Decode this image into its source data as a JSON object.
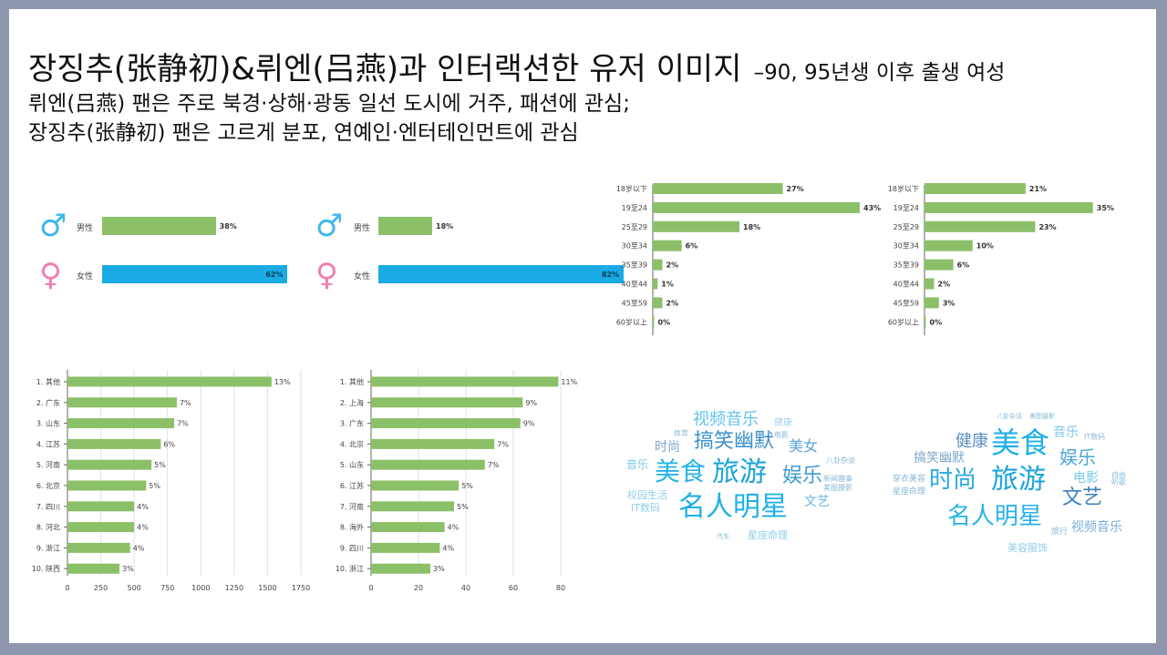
{
  "title": {
    "main": "장징추(张静初)&뤼엔(吕燕)과 인터랙션한 유저 이미지",
    "suffix": "–90, 95년생 이후 출생 여성",
    "line2": "뤼엔(吕燕) 팬은 주로 북경·상해·광동 일선 도시에 거주, 패션에 관심;",
    "line3": "장징추(张静初) 팬은 고르게 분포, 연예인·엔터테인먼트에 관심"
  },
  "colors": {
    "green": "#8cc068",
    "blue": "#1aabe4",
    "male": "#3db7ec",
    "female": "#f07fb3"
  },
  "gender": [
    {
      "male_icon": "♂",
      "female_icon": "♀",
      "male_label": "男性",
      "female_label": "女性",
      "male_text": "38%",
      "female_text": "62%",
      "male": 38,
      "female": 62
    },
    {
      "male_icon": "♂",
      "female_icon": "♀",
      "male_label": "男性",
      "female_label": "女性",
      "male_text": "18%",
      "female_text": "82%",
      "male": 18,
      "female": 82
    }
  ],
  "chart_data": [
    {
      "type": "bar",
      "orientation": "horizontal",
      "title": "",
      "categories": [
        "18岁以下",
        "19至24",
        "25至29",
        "30至34",
        "35至39",
        "40至44",
        "45至59",
        "60岁以上"
      ],
      "values": [
        27,
        43,
        18,
        6,
        2,
        1,
        2,
        0
      ],
      "labels": [
        "27%",
        "43%",
        "18%",
        "6%",
        "2%",
        "1%",
        "2%",
        "0%"
      ],
      "unit": "%"
    },
    {
      "type": "bar",
      "orientation": "horizontal",
      "title": "",
      "categories": [
        "18岁以下",
        "19至24",
        "25至29",
        "30至34",
        "35至39",
        "40至44",
        "45至59",
        "60岁以上"
      ],
      "values": [
        21,
        35,
        23,
        10,
        6,
        2,
        3,
        0
      ],
      "labels": [
        "21%",
        "35%",
        "23%",
        "10%",
        "6%",
        "2%",
        "3%",
        "0%"
      ],
      "unit": "%"
    },
    {
      "type": "bar",
      "orientation": "horizontal",
      "title": "",
      "categories": [
        "1. 其他",
        "2. 广东",
        "3. 山东",
        "4. 江苏",
        "5. 河南",
        "6. 北京",
        "7. 四川",
        "8. 河北",
        "9. 浙江",
        "10. 陕西"
      ],
      "values": [
        1530,
        820,
        800,
        700,
        630,
        590,
        500,
        500,
        470,
        390
      ],
      "labels": [
        "13%",
        "7%",
        "7%",
        "6%",
        "5%",
        "5%",
        "4%",
        "4%",
        "4%",
        "3%"
      ],
      "xlim": [
        0,
        1750
      ],
      "ticks": [
        0,
        250,
        500,
        750,
        1000,
        1250,
        1500,
        1750
      ]
    },
    {
      "type": "bar",
      "orientation": "horizontal",
      "title": "",
      "categories": [
        "1. 其他",
        "2. 上海",
        "3. 广东",
        "4. 北京",
        "5. 山东",
        "6. 江苏",
        "7. 河南",
        "8. 海外",
        "9. 四川",
        "10. 浙江"
      ],
      "values": [
        79,
        64,
        63,
        52,
        48,
        37,
        35,
        31,
        29,
        25
      ],
      "labels": [
        "11%",
        "9%",
        "9%",
        "7%",
        "7%",
        "5%",
        "5%",
        "4%",
        "4%",
        "3%"
      ],
      "xlim": [
        0,
        80
      ],
      "ticks": [
        0,
        20,
        40,
        60,
        80
      ]
    }
  ],
  "clouds": [
    [
      {
        "text": "视频音乐",
        "size": 18,
        "color": "#62c3ee",
        "x": 0,
        "y": 0
      },
      {
        "text": "健康",
        "size": 10,
        "color": "#9fd4ee",
        "x": 0,
        "y": 0
      },
      {
        "text": "体育",
        "size": 8,
        "color": "#8ab8d6",
        "x": 0,
        "y": 0
      },
      {
        "text": "电影",
        "size": 8,
        "color": "#8ab8d6",
        "x": 0,
        "y": 0
      },
      {
        "text": "搞笑幽默",
        "size": 22,
        "color": "#3b8fc9",
        "x": 0,
        "y": 0
      },
      {
        "text": "时尚",
        "size": 14,
        "color": "#7fa7c9",
        "x": 0,
        "y": 0
      },
      {
        "text": "美女",
        "size": 16,
        "color": "#5aa6d6",
        "x": 0,
        "y": 0
      },
      {
        "text": "音乐",
        "size": 12,
        "color": "#7bc8ea",
        "x": 0,
        "y": 0
      },
      {
        "text": "美食",
        "size": 28,
        "color": "#29b3e6",
        "x": 0,
        "y": 0
      },
      {
        "text": "旅游",
        "size": 30,
        "color": "#1aa3db",
        "x": 0,
        "y": 0
      },
      {
        "text": "娱乐",
        "size": 22,
        "color": "#3d9ad2",
        "x": 0,
        "y": 0
      },
      {
        "text": "八卦杂谈",
        "size": 8,
        "color": "#8ab8d6",
        "x": 0,
        "y": 0
      },
      {
        "text": "新闻趣事",
        "size": 8,
        "color": "#8ab8d6",
        "x": 0,
        "y": 0
      },
      {
        "text": "美图摄影",
        "size": 8,
        "color": "#8ab8d6",
        "x": 0,
        "y": 0
      },
      {
        "text": "校园生活",
        "size": 11,
        "color": "#8fcde9",
        "x": 0,
        "y": 0
      },
      {
        "text": "IT数码",
        "size": 11,
        "color": "#8fcde9",
        "x": 0,
        "y": 0
      },
      {
        "text": "名人明星",
        "size": 30,
        "color": "#1fb0e6",
        "x": 0,
        "y": 0
      },
      {
        "text": "文艺",
        "size": 14,
        "color": "#6db5de",
        "x": 0,
        "y": 0
      },
      {
        "text": "汽车",
        "size": 7,
        "color": "#8ab8d6",
        "x": 0,
        "y": 0
      },
      {
        "text": "星座命理",
        "size": 11,
        "color": "#8fcde9",
        "x": 0,
        "y": 0
      }
    ],
    [
      {
        "text": "八卦杂谈",
        "size": 7,
        "color": "#8ab8d6",
        "x": 0,
        "y": 0
      },
      {
        "text": "美图摄影",
        "size": 7,
        "color": "#8ab8d6",
        "x": 0,
        "y": 0
      },
      {
        "text": "健康",
        "size": 18,
        "color": "#5a8fc4",
        "x": 0,
        "y": 0
      },
      {
        "text": "美食",
        "size": 32,
        "color": "#1fb0e6",
        "x": 0,
        "y": 0
      },
      {
        "text": "音乐",
        "size": 14,
        "color": "#7bc8ea",
        "x": 0,
        "y": 0
      },
      {
        "text": "IT数码",
        "size": 8,
        "color": "#8ab8d6",
        "x": 0,
        "y": 0
      },
      {
        "text": "搞笑幽默",
        "size": 14,
        "color": "#7fa7c9",
        "x": 0,
        "y": 0
      },
      {
        "text": "娱乐",
        "size": 20,
        "color": "#4aa6da",
        "x": 0,
        "y": 0
      },
      {
        "text": "穿衣美容",
        "size": 9,
        "color": "#8ab8d6",
        "x": 0,
        "y": 0
      },
      {
        "text": "时尚",
        "size": 26,
        "color": "#2aa9e0",
        "x": 0,
        "y": 0
      },
      {
        "text": "旅游",
        "size": 30,
        "color": "#1aa3db",
        "x": 0,
        "y": 0
      },
      {
        "text": "电影",
        "size": 14,
        "color": "#7bc8ea",
        "x": 0,
        "y": 0
      },
      {
        "text": "自由",
        "size": 8,
        "color": "#8ab8d6",
        "x": 0,
        "y": 0
      },
      {
        "text": "听歌",
        "size": 8,
        "color": "#8ab8d6",
        "x": 0,
        "y": 0
      },
      {
        "text": "星座命理",
        "size": 9,
        "color": "#8ab8d6",
        "x": 0,
        "y": 0
      },
      {
        "text": "文艺",
        "size": 22,
        "color": "#3d7fbe",
        "x": 0,
        "y": 0
      },
      {
        "text": "名人明星",
        "size": 26,
        "color": "#29b3e6",
        "x": 0,
        "y": 0
      },
      {
        "text": "旅行",
        "size": 9,
        "color": "#8ab8d6",
        "x": 0,
        "y": 0
      },
      {
        "text": "视频音乐",
        "size": 14,
        "color": "#7bb0d8",
        "x": 0,
        "y": 0
      },
      {
        "text": "美容服饰",
        "size": 11,
        "color": "#8fcde9",
        "x": 0,
        "y": 0
      }
    ]
  ]
}
